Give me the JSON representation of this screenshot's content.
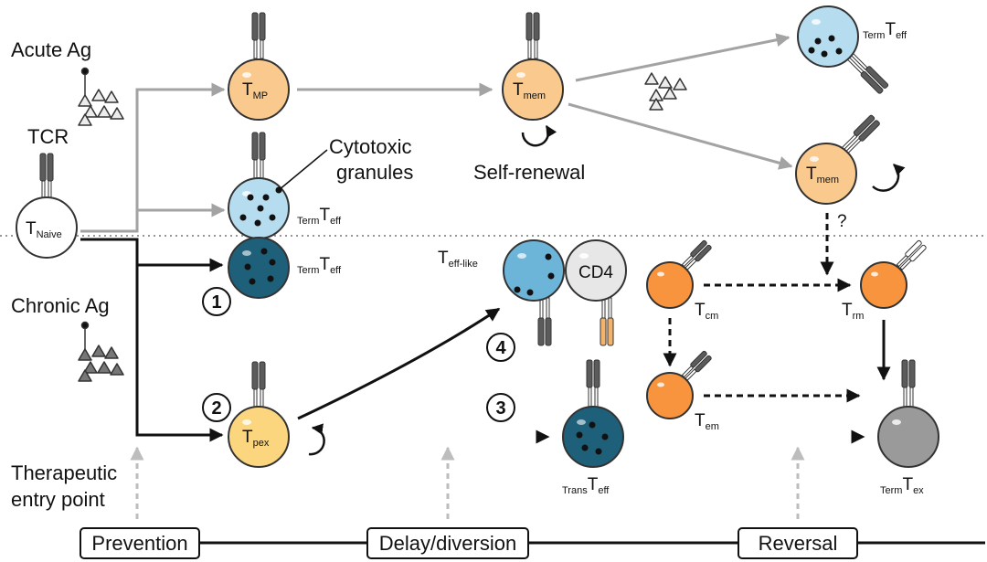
{
  "labels": {
    "acute_ag": "Acute Ag",
    "tcr": "TCR",
    "chronic_ag": "Chronic Ag",
    "cytotoxic_line1": "Cytotoxic",
    "cytotoxic_line2": "granules",
    "self_renewal": "Self-renewal",
    "therapeutic_line1": "Therapeutic",
    "therapeutic_line2": "entry point",
    "question": "?",
    "cd4": "CD4"
  },
  "cells": {
    "naive": {
      "main": "T",
      "sub": "Naive",
      "prefix": ""
    },
    "tmp": {
      "main": "T",
      "sub": "MP",
      "prefix": ""
    },
    "tmem_mid": {
      "main": "T",
      "sub": "mem",
      "prefix": ""
    },
    "term_teff_acute": {
      "main": "T",
      "sub": "eff",
      "prefix": "Term"
    },
    "tmem_right": {
      "main": "T",
      "sub": "mem",
      "prefix": ""
    },
    "term_teff_light": {
      "main": "T",
      "sub": "eff",
      "prefix": "Term"
    },
    "term_teff_dark": {
      "main": "T",
      "sub": "eff",
      "prefix": "Term"
    },
    "teff_like": {
      "main": "T",
      "sub": "eff-like",
      "prefix": ""
    },
    "tpex": {
      "main": "T",
      "sub": "pex",
      "prefix": ""
    },
    "trans_teff": {
      "main": "T",
      "sub": "eff",
      "prefix": "Trans"
    },
    "tcm": {
      "main": "T",
      "sub": "cm",
      "prefix": ""
    },
    "tem": {
      "main": "T",
      "sub": "em",
      "prefix": ""
    },
    "trm": {
      "main": "T",
      "sub": "rm",
      "prefix": ""
    },
    "term_tex": {
      "main": "T",
      "sub": "ex",
      "prefix": "Term"
    }
  },
  "numbers": [
    "1",
    "2",
    "3",
    "4"
  ],
  "stages": {
    "prevention": "Prevention",
    "delay": "Delay/diversion",
    "reversal": "Reversal"
  },
  "colors": {
    "orange_light": "#f9c98e",
    "orange_bright": "#f7943d",
    "yellow": "#fbd67f",
    "blue_light": "#b6dcef",
    "blue_mid": "#6cb4d8",
    "blue_dark": "#1e5f7a",
    "grey_cell": "#9a9a9a",
    "white_cell": "#ffffff",
    "tcr_dark": "#5b5b5b",
    "arrow_grey": "#a3a3a3"
  }
}
